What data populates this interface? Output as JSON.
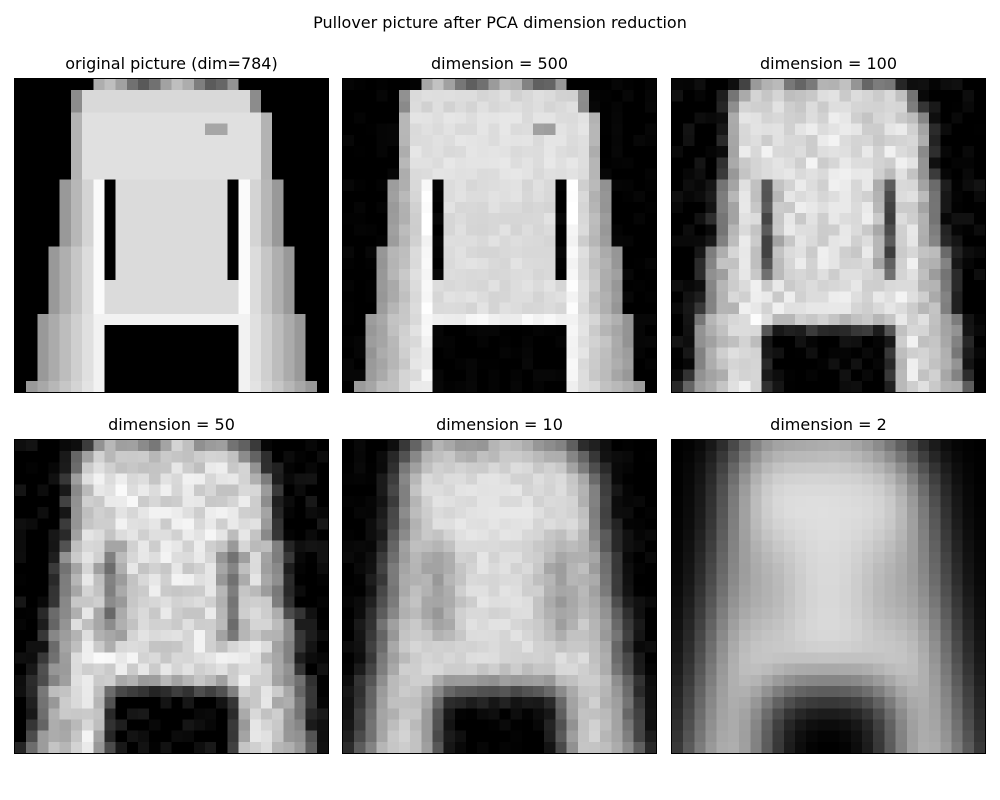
{
  "figure": {
    "title": "Pullover picture after PCA dimension reduction",
    "panels": [
      {
        "title": "original picture (dim=784)",
        "dimension": 784,
        "blur": 0.0,
        "noise": 0.0
      },
      {
        "title": "dimension = 500",
        "dimension": 500,
        "blur": 0.25,
        "noise": 0.03
      },
      {
        "title": "dimension = 100",
        "dimension": 100,
        "blur": 0.6,
        "noise": 0.08
      },
      {
        "title": "dimension = 50",
        "dimension": 50,
        "blur": 0.8,
        "noise": 0.1
      },
      {
        "title": "dimension = 10",
        "dimension": 10,
        "blur": 1.3,
        "noise": 0.04
      },
      {
        "title": "dimension = 2",
        "dimension": 2,
        "blur": 2.2,
        "noise": 0.0
      }
    ],
    "colormap": "gray",
    "image_grid": "28x28"
  }
}
